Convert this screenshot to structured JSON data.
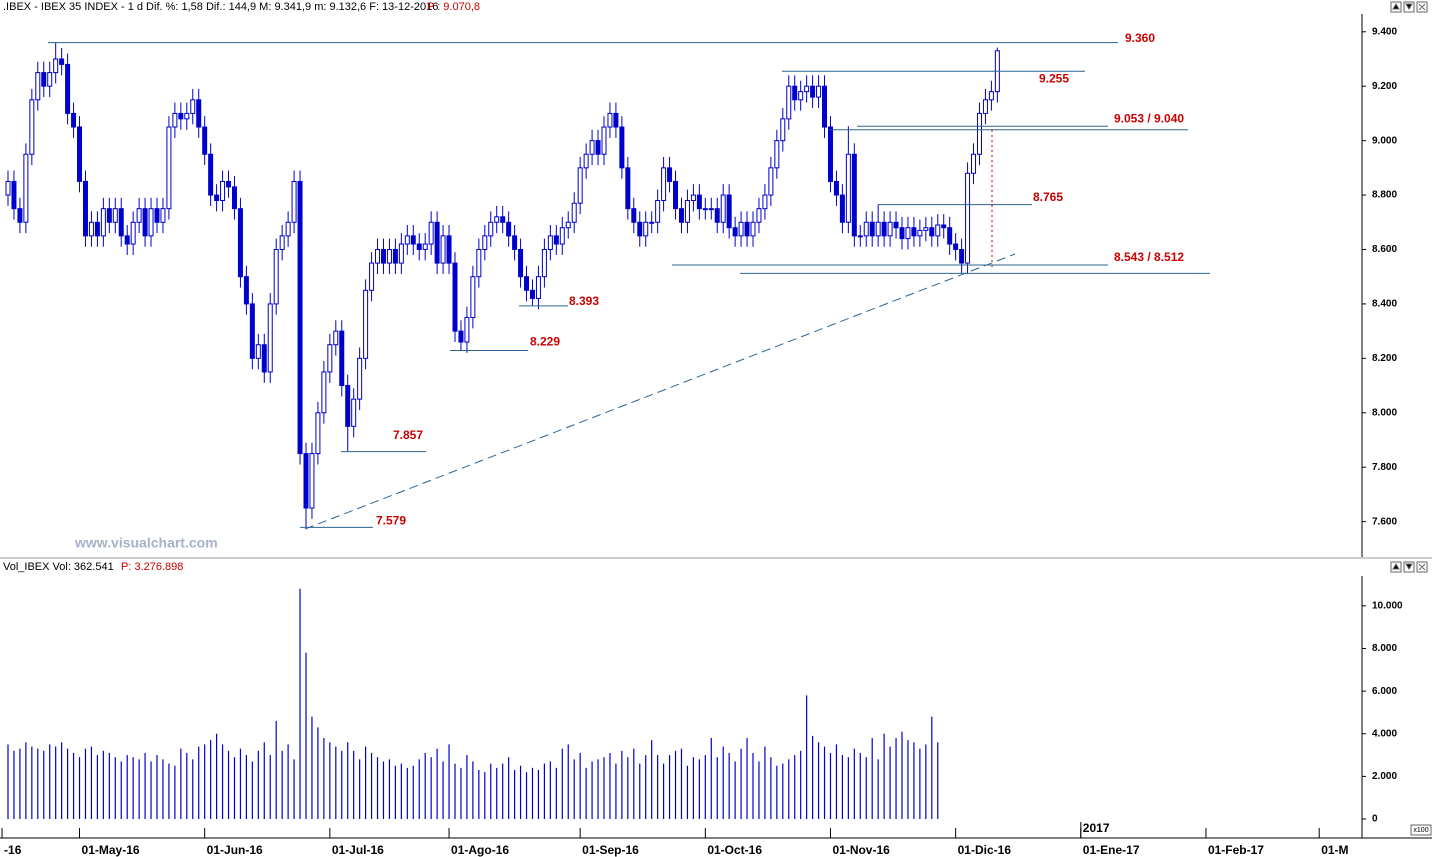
{
  "chart_data": [
    {
      "type": "candlestick",
      "title": ".IBEX - IBEX 35 INDEX - 1 d  Dif. %: 1,58  Dif.: 144,9  M: 9.341,9  m: 9.132,6  F: 13-12-2016",
      "last_price_label": "P : 9.070,8",
      "watermark": "www.visualchart.com",
      "color": "#0000cc",
      "level_color": "#2a6496",
      "annotation_color": "#cc0000",
      "open": [
        8800,
        8850,
        8750,
        8700,
        8950,
        9150,
        9250,
        9200,
        9250,
        9300,
        9280,
        9100,
        9050,
        8850,
        8650,
        8700,
        8650,
        8750,
        8700,
        8750,
        8650,
        8620,
        8700,
        8750,
        8650,
        8750,
        8700,
        8750,
        9050,
        9100,
        9080,
        9100,
        9150,
        9050,
        8950,
        8800,
        8780,
        8850,
        8830,
        8750,
        8500,
        8400,
        8200,
        8250,
        8150,
        8400,
        8600,
        8650,
        8700,
        8850,
        7850,
        7650,
        7850,
        8000,
        8150,
        8250,
        8300,
        8100,
        7950,
        8050,
        8200,
        8450,
        8550,
        8600,
        8550,
        8600,
        8550,
        8620,
        8650,
        8620,
        8600,
        8620,
        8700,
        8550,
        8650,
        8550,
        8300,
        8260,
        8350,
        8500,
        8600,
        8650,
        8700,
        8720,
        8700,
        8650,
        8600,
        8500,
        8450,
        8420,
        8500,
        8600,
        8650,
        8620,
        8680,
        8700,
        8770,
        8900,
        8950,
        9000,
        8950,
        9050,
        9100,
        9050,
        8900,
        8750,
        8700,
        8650,
        8700,
        8700,
        8780,
        8900,
        8850,
        8750,
        8700,
        8780,
        8800,
        8750,
        8750,
        8750,
        8700,
        8800,
        8680,
        8650,
        8700,
        8650,
        8700,
        8750,
        8800,
        8900,
        9000,
        9080,
        9200,
        9150,
        9180,
        9200,
        9160,
        9200,
        9050,
        8850,
        8800,
        8700,
        8950,
        8650,
        8650,
        8700,
        8650,
        8700,
        8650,
        8700,
        8680,
        8640,
        8680,
        8650,
        8670,
        8680,
        8650,
        8690,
        8680,
        8620,
        8600,
        8550,
        8880,
        8950,
        9100,
        9150,
        9180
      ],
      "high": [
        8890,
        8890,
        8790,
        8990,
        9190,
        9290,
        9290,
        9290,
        9360,
        9340,
        9320,
        9140,
        9090,
        8890,
        8740,
        8740,
        8790,
        8790,
        8790,
        8790,
        8690,
        8740,
        8790,
        8790,
        8790,
        8790,
        8790,
        9090,
        9140,
        9140,
        9140,
        9190,
        9190,
        9090,
        8990,
        8840,
        8890,
        8890,
        8870,
        8790,
        8540,
        8440,
        8290,
        8290,
        8440,
        8640,
        8690,
        8740,
        8890,
        8890,
        7890,
        7890,
        8040,
        8190,
        8290,
        8340,
        8340,
        8140,
        8090,
        8240,
        8490,
        8590,
        8640,
        8640,
        8640,
        8640,
        8660,
        8690,
        8690,
        8660,
        8660,
        8740,
        8740,
        8690,
        8690,
        8590,
        8340,
        8390,
        8540,
        8640,
        8690,
        8740,
        8760,
        8760,
        8740,
        8690,
        8640,
        8540,
        8490,
        8540,
        8640,
        8690,
        8690,
        8720,
        8740,
        8810,
        8940,
        8990,
        9040,
        9040,
        9090,
        9140,
        9140,
        9090,
        8940,
        8790,
        8740,
        8740,
        8740,
        8820,
        8940,
        8940,
        8890,
        8790,
        8820,
        8840,
        8840,
        8790,
        8790,
        8790,
        8840,
        8840,
        8720,
        8740,
        8740,
        8740,
        8790,
        8840,
        8940,
        9040,
        9120,
        9240,
        9240,
        9220,
        9240,
        9240,
        9240,
        9240,
        9090,
        8890,
        8840,
        9053,
        8990,
        8690,
        8740,
        8740,
        8765,
        8740,
        8740,
        8740,
        8720,
        8720,
        8720,
        8710,
        8720,
        8720,
        8730,
        8730,
        8720,
        8660,
        8640,
        8920,
        8990,
        9140,
        9190,
        9220,
        9342
      ],
      "low": [
        8760,
        8710,
        8660,
        8660,
        8910,
        9110,
        9160,
        9160,
        9210,
        9240,
        9060,
        9010,
        8810,
        8610,
        8610,
        8610,
        8610,
        8660,
        8660,
        8610,
        8580,
        8580,
        8660,
        8610,
        8610,
        8660,
        8660,
        8710,
        9010,
        9040,
        9040,
        9060,
        9010,
        8910,
        8760,
        8740,
        8740,
        8790,
        8710,
        8460,
        8360,
        8160,
        8160,
        8110,
        8110,
        8360,
        8560,
        8610,
        8660,
        7810,
        7579,
        7610,
        7810,
        7960,
        8110,
        8210,
        8060,
        7857,
        7910,
        8010,
        8160,
        8410,
        8510,
        8510,
        8510,
        8510,
        8510,
        8580,
        8580,
        8560,
        8560,
        8580,
        8510,
        8510,
        8510,
        8260,
        8229,
        8220,
        8310,
        8460,
        8560,
        8610,
        8660,
        8660,
        8610,
        8560,
        8460,
        8410,
        8393,
        8380,
        8460,
        8560,
        8580,
        8580,
        8640,
        8660,
        8730,
        8860,
        8910,
        8910,
        8910,
        9010,
        9010,
        8860,
        8710,
        8660,
        8610,
        8610,
        8660,
        8660,
        8740,
        8810,
        8710,
        8660,
        8660,
        8740,
        8710,
        8710,
        8710,
        8660,
        8660,
        8640,
        8610,
        8610,
        8610,
        8610,
        8660,
        8710,
        8760,
        8860,
        8960,
        9040,
        9110,
        9110,
        9140,
        9120,
        9120,
        9010,
        8810,
        8760,
        8660,
        8660,
        8610,
        8610,
        8610,
        8610,
        8610,
        8610,
        8610,
        8640,
        8600,
        8600,
        8610,
        8610,
        8630,
        8610,
        8610,
        8640,
        8580,
        8560,
        8512,
        8510,
        8840,
        8910,
        9060,
        9110,
        9140
      ],
      "close": [
        8850,
        8750,
        8700,
        8950,
        9150,
        9250,
        9200,
        9250,
        9300,
        9280,
        9100,
        9050,
        8850,
        8650,
        8700,
        8650,
        8750,
        8700,
        8750,
        8650,
        8620,
        8700,
        8750,
        8650,
        8750,
        8700,
        8750,
        9050,
        9100,
        9080,
        9100,
        9150,
        9050,
        8950,
        8800,
        8780,
        8850,
        8830,
        8750,
        8500,
        8400,
        8200,
        8250,
        8150,
        8400,
        8600,
        8650,
        8700,
        8850,
        7850,
        7650,
        7850,
        8000,
        8150,
        8250,
        8300,
        8100,
        7950,
        8050,
        8200,
        8450,
        8550,
        8600,
        8550,
        8600,
        8550,
        8620,
        8650,
        8620,
        8600,
        8620,
        8700,
        8550,
        8650,
        8550,
        8300,
        8260,
        8350,
        8500,
        8600,
        8650,
        8700,
        8720,
        8700,
        8650,
        8600,
        8500,
        8450,
        8420,
        8500,
        8600,
        8650,
        8620,
        8680,
        8700,
        8770,
        8900,
        8950,
        9000,
        8950,
        9050,
        9100,
        9050,
        8900,
        8750,
        8700,
        8650,
        8700,
        8700,
        8780,
        8900,
        8850,
        8750,
        8700,
        8780,
        8800,
        8750,
        8750,
        8750,
        8700,
        8800,
        8680,
        8650,
        8700,
        8650,
        8700,
        8750,
        8800,
        8900,
        9000,
        9080,
        9200,
        9150,
        9180,
        9200,
        9160,
        9200,
        9050,
        8850,
        8800,
        8700,
        8950,
        8650,
        8650,
        8700,
        8650,
        8700,
        8650,
        8700,
        8680,
        8640,
        8680,
        8650,
        8670,
        8680,
        8650,
        8690,
        8680,
        8620,
        8600,
        8550,
        8880,
        8950,
        9100,
        9150,
        9180,
        9330
      ],
      "ylim": [
        7470,
        9480
      ],
      "yticks": [
        {
          "value": 7600,
          "label": "7.600"
        },
        {
          "value": 7800,
          "label": "7.800"
        },
        {
          "value": 8000,
          "label": "8.000"
        },
        {
          "value": 8200,
          "label": "8.200"
        },
        {
          "value": 8400,
          "label": "8.400"
        },
        {
          "value": 8600,
          "label": "8.600"
        },
        {
          "value": 8800,
          "label": "8.800"
        },
        {
          "value": 9000,
          "label": "9.000"
        },
        {
          "value": 9200,
          "label": "9.200"
        },
        {
          "value": 9400,
          "label": "9.400"
        }
      ],
      "annotations": [
        {
          "text": "9.360",
          "levels": [
            9360
          ]
        },
        {
          "text": "9.255",
          "levels": [
            9255
          ]
        },
        {
          "text": "9.053 / 9.040",
          "levels": [
            9053,
            9040
          ]
        },
        {
          "text": "8.765",
          "levels": [
            8765
          ]
        },
        {
          "text": "8.543 / 8.512",
          "levels": [
            8543,
            8512
          ]
        },
        {
          "text": "8.393",
          "levels": [
            8393
          ]
        },
        {
          "text": "8.229",
          "levels": [
            8229
          ]
        },
        {
          "text": "7.857",
          "levels": [
            7857
          ]
        },
        {
          "text": "7.579",
          "levels": [
            7579
          ]
        }
      ]
    },
    {
      "type": "volume",
      "title": "Vol_IBEX Vol: 362.541",
      "last_value_label": "P: 3.276.898",
      "scale_label": "x100",
      "color": "#0000cc",
      "values": [
        3500,
        3200,
        3300,
        3600,
        3400,
        3300,
        3200,
        3500,
        3400,
        3600,
        3300,
        3100,
        2900,
        3300,
        3400,
        3000,
        3200,
        3100,
        2900,
        2700,
        3000,
        2900,
        2800,
        3100,
        2700,
        3000,
        2800,
        2600,
        2500,
        3300,
        3100,
        2800,
        3400,
        3500,
        3700,
        4000,
        3500,
        3200,
        2900,
        3300,
        3000,
        2700,
        3200,
        3600,
        3000,
        4600,
        3200,
        3500,
        2800,
        10800,
        7800,
        4800,
        4300,
        3800,
        3600,
        3400,
        3200,
        3600,
        3200,
        2800,
        3400,
        3100,
        2900,
        2700,
        2800,
        2500,
        2600,
        2400,
        2500,
        2800,
        3100,
        2900,
        3300,
        2700,
        3500,
        2600,
        2400,
        3000,
        2700,
        2300,
        2200,
        2600,
        2400,
        2600,
        2900,
        2300,
        2500,
        2200,
        2400,
        2300,
        2600,
        2700,
        2400,
        3300,
        3500,
        2800,
        3100,
        2400,
        2700,
        2800,
        2900,
        3100,
        2600,
        3200,
        2900,
        3300,
        2600,
        3000,
        3700,
        3000,
        2600,
        3000,
        3200,
        3300,
        2500,
        2900,
        2800,
        3000,
        3800,
        2900,
        3400,
        3100,
        2700,
        3300,
        3800,
        3100,
        2700,
        3400,
        2900,
        2500,
        2600,
        2800,
        3000,
        3200,
        5800,
        3900,
        3600,
        3400,
        3100,
        3500,
        3000,
        2900,
        3300,
        3100,
        2900,
        3800,
        2800,
        4000,
        3400,
        3800,
        4100,
        3700,
        3600,
        3300,
        3500,
        4800,
        3600
      ],
      "ylim": [
        -750,
        11400
      ],
      "yticks": [
        0,
        {
          "value": 2000,
          "label": "2.000"
        },
        {
          "value": 4000,
          "label": "4.000"
        },
        {
          "value": 6000,
          "label": "6.000"
        },
        {
          "value": 8000,
          "label": "8.000"
        },
        {
          "value": 10000,
          "label": "10.000"
        }
      ],
      "xticks": [
        {
          "value": -1,
          "label": "-16"
        },
        {
          "value": 12,
          "label": "01-May-16"
        },
        {
          "value": 33,
          "label": "01-Jun-16"
        },
        {
          "value": 54,
          "label": "01-Jul-16"
        },
        {
          "value": 74,
          "label": "01-Ago-16"
        },
        {
          "value": 96,
          "label": "01-Sep-16"
        },
        {
          "value": 117,
          "label": "01-Oct-16"
        },
        {
          "value": 138,
          "label": "01-Nov-16"
        },
        {
          "value": 159,
          "label": "01-Dic-16"
        },
        {
          "value": 180,
          "label": "01-Ene-17"
        },
        {
          "value": 201,
          "label": "01-Feb-17"
        },
        {
          "value": 220,
          "label": "01-M"
        }
      ],
      "year_label": {
        "value": 180,
        "label": "2017"
      }
    }
  ]
}
